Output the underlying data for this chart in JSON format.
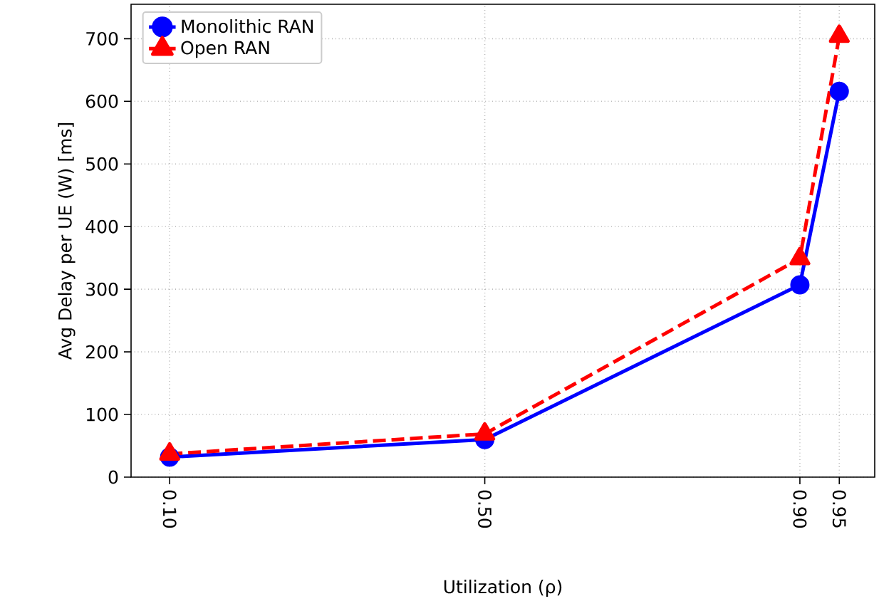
{
  "chart_data": {
    "type": "line",
    "xlabel": "Utilization (ρ)",
    "ylabel": "Avg Delay per UE (W) [ms]",
    "x": [
      0.1,
      0.5,
      0.9,
      0.95
    ],
    "series": [
      {
        "name": "Monolithic RAN",
        "color": "#0000ff",
        "values": [
          32,
          60,
          307,
          616
        ],
        "marker": "circle",
        "line_style": "solid"
      },
      {
        "name": "Open RAN",
        "color": "#ff0000",
        "values": [
          37,
          69,
          349,
          704
        ],
        "marker": "triangle",
        "line_style": "dashed"
      }
    ],
    "xlim": [
      0.051,
      0.995
    ],
    "ylim": [
      0,
      755
    ],
    "xticks": [
      {
        "value": 0.1,
        "label": "0.10"
      },
      {
        "value": 0.5,
        "label": "0.50"
      },
      {
        "value": 0.9,
        "label": "0.90"
      },
      {
        "value": 0.95,
        "label": "0.95"
      }
    ],
    "yticks": [
      0,
      100,
      200,
      300,
      400,
      500,
      600,
      700
    ],
    "grid": true,
    "legend": "top left"
  }
}
